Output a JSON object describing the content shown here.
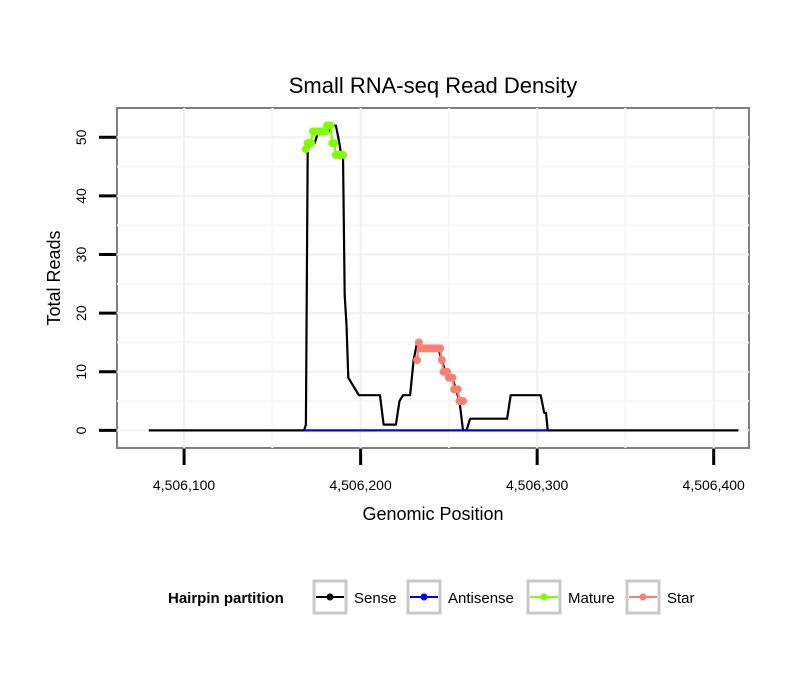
{
  "chart_data": {
    "type": "line",
    "title": "Small RNA-seq Read Density",
    "xlabel": "Genomic Position",
    "ylabel": "Total Reads",
    "xlim": [
      4506062,
      4506420
    ],
    "ylim": [
      -3,
      55
    ],
    "xticks": [
      4506100,
      4506200,
      4506300,
      4506400
    ],
    "xtick_labels": [
      "4,506,100",
      "4,506,200",
      "4,506,300",
      "4,506,400"
    ],
    "yticks": [
      0,
      10,
      20,
      30,
      40,
      50
    ],
    "ytick_labels": [
      "0",
      "10",
      "20",
      "30",
      "40",
      "50"
    ],
    "grid": true,
    "legend": {
      "title": "Hairpin partition",
      "position": "bottom",
      "entries": [
        {
          "name": "Sense",
          "color": "#000000"
        },
        {
          "name": "Antisense",
          "color": "#0000ff"
        },
        {
          "name": "Mature",
          "color": "#7fff00"
        },
        {
          "name": "Star",
          "color": "#fa8072"
        }
      ]
    },
    "series": [
      {
        "name": "Sense",
        "color": "#000000",
        "x": [
          4506080,
          4506168,
          4506169,
          4506170,
          4506172,
          4506174,
          4506176,
          4506178,
          4506180,
          4506182,
          4506184,
          4506186,
          4506188,
          4506189,
          4506190,
          4506191,
          4506192,
          4506193,
          4506199,
          4506200,
          4506211,
          4506213,
          4506220,
          4506222,
          4506224,
          4506228,
          4506230,
          4506232,
          4506234,
          4506236,
          4506238,
          4506240,
          4506242,
          4506244,
          4506246,
          4506248,
          4506250,
          4506252,
          4506254,
          4506256,
          4506258,
          4506259,
          4506260,
          4506262,
          4506263,
          4506283,
          4506285,
          4506300,
          4506302,
          4506304,
          4506305,
          4506306,
          4506414
        ],
        "values": [
          0,
          0,
          1,
          48,
          49,
          49,
          51,
          51,
          51,
          51,
          52,
          52,
          49,
          47,
          47,
          23,
          18,
          9,
          6,
          6,
          6,
          1,
          1,
          5,
          6,
          6,
          12,
          15,
          14,
          14,
          14,
          14,
          14,
          14,
          12,
          10,
          9,
          9,
          7,
          5,
          0,
          0,
          0,
          2,
          2,
          2,
          6,
          6,
          6,
          3,
          3,
          0,
          0
        ]
      },
      {
        "name": "Antisense",
        "color": "#0000ff",
        "x": [
          4506168,
          4506306
        ],
        "values": [
          0,
          0
        ]
      },
      {
        "name": "Mature",
        "color": "#7fff00",
        "x": [
          4506169,
          4506170,
          4506171,
          4506172,
          4506173,
          4506174,
          4506175,
          4506176,
          4506177,
          4506178,
          4506179,
          4506180,
          4506181,
          4506182,
          4506183,
          4506184,
          4506185,
          4506186,
          4506187,
          4506188,
          4506189,
          4506190
        ],
        "values": [
          48,
          49,
          49,
          49,
          51,
          51,
          51,
          51,
          51,
          51,
          51,
          51,
          52,
          52,
          52,
          49,
          49,
          47,
          47,
          47,
          47,
          47
        ]
      },
      {
        "name": "Star",
        "color": "#fa8072",
        "x": [
          4506232,
          4506233,
          4506234,
          4506235,
          4506236,
          4506237,
          4506238,
          4506239,
          4506240,
          4506241,
          4506242,
          4506243,
          4506244,
          4506245,
          4506246,
          4506247,
          4506248,
          4506249,
          4506250,
          4506251,
          4506252,
          4506253,
          4506254,
          4506255,
          4506256,
          4506257,
          4506258
        ],
        "values": [
          12,
          15,
          14,
          14,
          14,
          14,
          14,
          14,
          14,
          14,
          14,
          14,
          14,
          14,
          12,
          10,
          10,
          10,
          9,
          9,
          9,
          7,
          7,
          7,
          5,
          5,
          5
        ]
      }
    ]
  }
}
